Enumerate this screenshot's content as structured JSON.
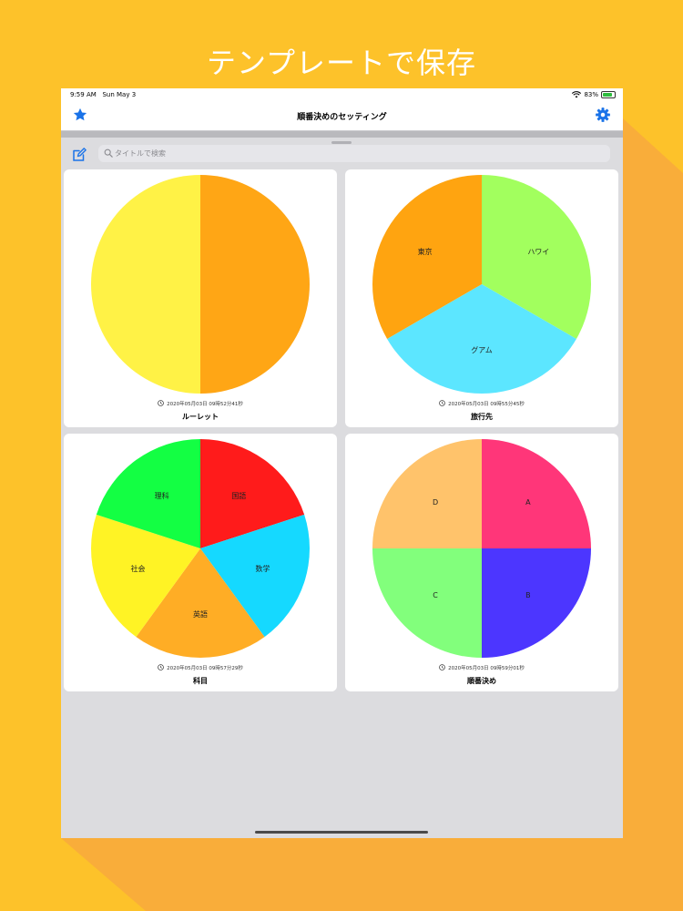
{
  "promo": {
    "title": "テンプレートで保存"
  },
  "status_bar": {
    "time": "9:59 AM",
    "date": "Sun May 3",
    "battery": "83%",
    "battery_level": 0.83
  },
  "nav": {
    "title": "順番決めのセッティング",
    "left_icon": "star-icon",
    "right_icon": "gear-icon"
  },
  "search": {
    "placeholder": "タイトルで検索",
    "value": "",
    "left_icon": "edit-icon"
  },
  "colors": {
    "accent": "#1a73e8",
    "background": "#fdc22a",
    "shadow": "#f9ad3a"
  },
  "cards": [
    {
      "title": "ルーレット",
      "date": "2020年05月03日 09時52分41秒",
      "chart_data": {
        "type": "pie",
        "slices": [
          {
            "label": "",
            "value": 1,
            "color": "#ffa615"
          },
          {
            "label": "",
            "value": 1,
            "color": "#fff246"
          }
        ]
      }
    },
    {
      "title": "旅行先",
      "date": "2020年05月03日 09時55分45秒",
      "chart_data": {
        "type": "pie",
        "slices": [
          {
            "label": "ハワイ",
            "value": 1,
            "color": "#a2ff5e"
          },
          {
            "label": "グアム",
            "value": 1,
            "color": "#5ce6ff"
          },
          {
            "label": "東京",
            "value": 1,
            "color": "#ffa410"
          }
        ]
      }
    },
    {
      "title": "科目",
      "date": "2020年05月03日 09時57分29秒",
      "chart_data": {
        "type": "pie",
        "slices": [
          {
            "label": "国語",
            "value": 1,
            "color": "#ff1b1b"
          },
          {
            "label": "数学",
            "value": 1,
            "color": "#15d9ff"
          },
          {
            "label": "英語",
            "value": 1,
            "color": "#ffad25"
          },
          {
            "label": "社会",
            "value": 1,
            "color": "#fff325"
          },
          {
            "label": "理科",
            "value": 1,
            "color": "#13ff43"
          }
        ]
      }
    },
    {
      "title": "順番決め",
      "date": "2020年05月03日 09時59分01秒",
      "chart_data": {
        "type": "pie",
        "slices": [
          {
            "label": "A",
            "value": 1,
            "color": "#ff3679"
          },
          {
            "label": "B",
            "value": 1,
            "color": "#4c36ff"
          },
          {
            "label": "C",
            "value": 1,
            "color": "#82ff7c"
          },
          {
            "label": "D",
            "value": 1,
            "color": "#ffc36b"
          }
        ]
      }
    }
  ]
}
